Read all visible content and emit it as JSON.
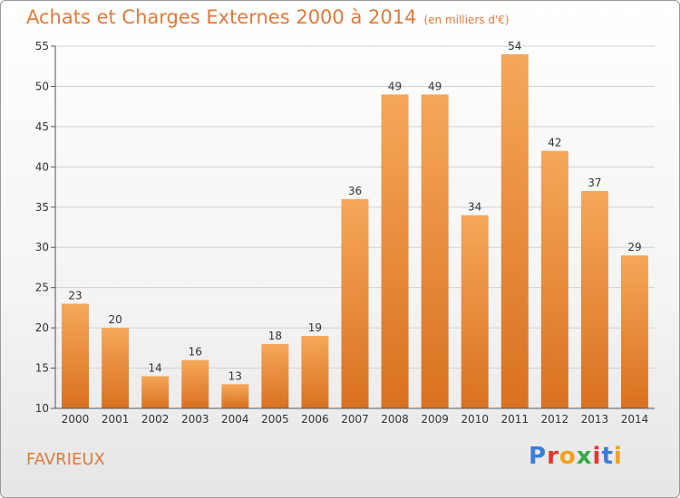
{
  "title": "Achats et Charges Externes 2000 à 2014",
  "subtitle": "(en milliers d'€)",
  "commune": "FAVRIEUX",
  "logo": {
    "text": "Proxiti",
    "letter_colors": [
      "#3a7fd6",
      "#e2382e",
      "#f0a21c",
      "#3aa84a",
      "#e2382e",
      "#3a7fd6",
      "#f0a21c"
    ]
  },
  "colors": {
    "bar_top": "#f6a75a",
    "bar_bottom": "#d9711f",
    "title": "#e07a3c",
    "grid": "#d0d0d0"
  },
  "chart_data": {
    "type": "bar",
    "categories": [
      "2000",
      "2001",
      "2002",
      "2003",
      "2004",
      "2005",
      "2006",
      "2007",
      "2008",
      "2009",
      "2010",
      "2011",
      "2012",
      "2013",
      "2014"
    ],
    "values": [
      23,
      20,
      14,
      16,
      13,
      18,
      19,
      36,
      49,
      49,
      34,
      54,
      42,
      37,
      29
    ],
    "ylim": [
      10,
      55
    ],
    "yticks": [
      10,
      15,
      20,
      25,
      30,
      35,
      40,
      45,
      50,
      55
    ],
    "grid": true,
    "data_labels": true
  }
}
